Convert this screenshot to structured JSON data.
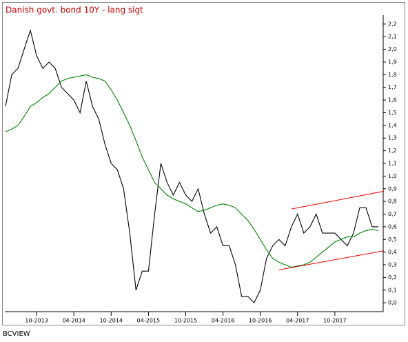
{
  "chart_data": {
    "type": "line",
    "title": "Danish govt. bond 10Y - lang sigt",
    "footer": "BCVIEW",
    "x": [
      "05-2013",
      "06-2013",
      "07-2013",
      "08-2013",
      "09-2013",
      "10-2013",
      "11-2013",
      "12-2013",
      "01-2014",
      "02-2014",
      "03-2014",
      "04-2014",
      "05-2014",
      "06-2014",
      "07-2014",
      "08-2014",
      "09-2014",
      "10-2014",
      "11-2014",
      "12-2014",
      "01-2015",
      "02-2015",
      "03-2015",
      "04-2015",
      "05-2015",
      "06-2015",
      "07-2015",
      "08-2015",
      "09-2015",
      "10-2015",
      "11-2015",
      "12-2015",
      "01-2016",
      "02-2016",
      "03-2016",
      "04-2016",
      "05-2016",
      "06-2016",
      "07-2016",
      "08-2016",
      "09-2016",
      "10-2016",
      "11-2016",
      "12-2016",
      "01-2017",
      "02-2017",
      "03-2017",
      "04-2017",
      "05-2017",
      "06-2017",
      "07-2017",
      "08-2017",
      "09-2017",
      "10-2017",
      "11-2017",
      "12-2017",
      "01-2018",
      "02-2018",
      "03-2018",
      "04-2018",
      "05-2018"
    ],
    "series": [
      {
        "color": "#000000",
        "values": [
          1.55,
          1.8,
          1.85,
          2.0,
          2.15,
          1.95,
          1.85,
          1.9,
          1.85,
          1.7,
          1.65,
          1.6,
          1.5,
          1.75,
          1.55,
          1.45,
          1.25,
          1.1,
          1.05,
          0.9,
          0.55,
          0.1,
          0.25,
          0.25,
          0.7,
          1.1,
          0.95,
          0.85,
          0.95,
          0.85,
          0.8,
          0.9,
          0.7,
          0.55,
          0.6,
          0.45,
          0.45,
          0.3,
          0.05,
          0.05,
          0.0,
          0.1,
          0.35,
          0.45,
          0.5,
          0.45,
          0.6,
          0.7,
          0.55,
          0.6,
          0.7,
          0.55,
          0.55,
          0.55,
          0.5,
          0.45,
          0.55,
          0.75,
          0.75,
          0.6,
          0.6
        ]
      },
      {
        "color": "#008000",
        "values": [
          1.35,
          1.37,
          1.4,
          1.47,
          1.55,
          1.58,
          1.62,
          1.65,
          1.7,
          1.75,
          1.77,
          1.78,
          1.79,
          1.8,
          1.78,
          1.77,
          1.75,
          1.68,
          1.6,
          1.5,
          1.4,
          1.28,
          1.15,
          1.05,
          0.95,
          0.9,
          0.85,
          0.82,
          0.8,
          0.78,
          0.75,
          0.72,
          0.73,
          0.75,
          0.77,
          0.78,
          0.77,
          0.75,
          0.7,
          0.65,
          0.58,
          0.5,
          0.42,
          0.35,
          0.32,
          0.3,
          0.28,
          0.29,
          0.3,
          0.32,
          0.36,
          0.4,
          0.44,
          0.48,
          0.5,
          0.52,
          0.52,
          0.55,
          0.57,
          0.58,
          0.57
        ]
      }
    ],
    "trendlines": [
      {
        "color": "#e00000",
        "start": {
          "x": "03-2017",
          "value": 0.74
        },
        "end": {
          "x": "05-2018",
          "value": 0.88
        }
      },
      {
        "color": "#e00000",
        "start": {
          "x": "01-2017",
          "value": 0.26
        },
        "end": {
          "x": "05-2018",
          "value": 0.41
        }
      }
    ],
    "xticks": [
      "10-2013",
      "04-2014",
      "10-2014",
      "04-2015",
      "10-2015",
      "04-2016",
      "10-2016",
      "04-2017",
      "10-2017"
    ],
    "ylim": [
      -0.07,
      2.27
    ],
    "yticks": [
      {
        "value": 0.0,
        "label": "0,0"
      },
      {
        "value": 0.1,
        "label": "0,1"
      },
      {
        "value": 0.2,
        "label": "0,2"
      },
      {
        "value": 0.3,
        "label": "0,3"
      },
      {
        "value": 0.4,
        "label": "0,4"
      },
      {
        "value": 0.5,
        "label": "0,5"
      },
      {
        "value": 0.6,
        "label": "0,6"
      },
      {
        "value": 0.7,
        "label": "0,7"
      },
      {
        "value": 0.8,
        "label": "0,8"
      },
      {
        "value": 0.9,
        "label": "0,9"
      },
      {
        "value": 1.0,
        "label": "1,0"
      },
      {
        "value": 1.1,
        "label": "1,1"
      },
      {
        "value": 1.2,
        "label": "1,2"
      },
      {
        "value": 1.3,
        "label": "1,3"
      },
      {
        "value": 1.4,
        "label": "1,4"
      },
      {
        "value": 1.5,
        "label": "1,5"
      },
      {
        "value": 1.6,
        "label": "1,6"
      },
      {
        "value": 1.7,
        "label": "1,7"
      },
      {
        "value": 1.8,
        "label": "1,8"
      },
      {
        "value": 1.9,
        "label": "1,9"
      },
      {
        "value": 2.0,
        "label": "2,0"
      },
      {
        "value": 2.1,
        "label": "2,1"
      },
      {
        "value": 2.2,
        "label": "2,2"
      }
    ]
  }
}
